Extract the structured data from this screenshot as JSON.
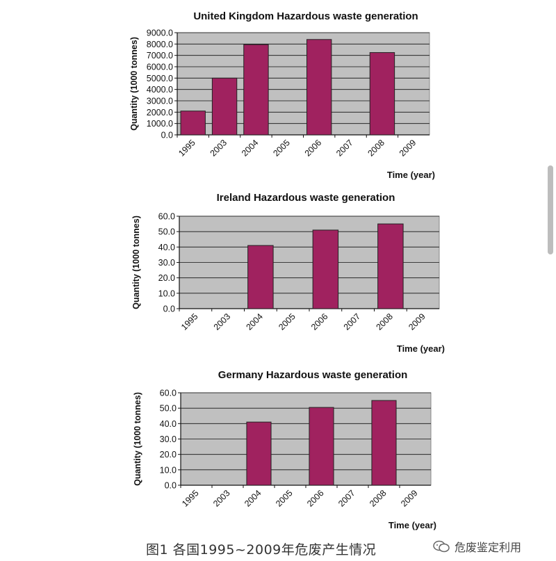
{
  "chart_data": [
    {
      "type": "bar",
      "title": "United Kingdom Hazardous waste generation",
      "xlabel": "Time (year)",
      "ylabel": "Quantity (1000 tonnes)",
      "categories": [
        "1995",
        "2003",
        "2004",
        "2005",
        "2006",
        "2007",
        "2008",
        "2009"
      ],
      "values": [
        2100,
        5000,
        7950,
        null,
        8400,
        null,
        7250,
        null
      ],
      "ylim": [
        0,
        9000
      ],
      "yticks": [
        "0.0",
        "1000.0",
        "2000.0",
        "3000.0",
        "4000.0",
        "5000.0",
        "6000.0",
        "7000.0",
        "8000.0",
        "9000.0"
      ],
      "grid": true,
      "bar_color": "#a0225f",
      "plot_bg": "#c0c0c0"
    },
    {
      "type": "bar",
      "title": "Ireland Hazardous waste generation",
      "xlabel": "Time (year)",
      "ylabel": "Quantity (1000 tonnes)",
      "categories": [
        "1995",
        "2003",
        "2004",
        "2005",
        "2006",
        "2007",
        "2008",
        "2009"
      ],
      "values": [
        null,
        null,
        41,
        null,
        51,
        null,
        55,
        null
      ],
      "ylim": [
        0,
        60
      ],
      "yticks": [
        "0.0",
        "10.0",
        "20.0",
        "30.0",
        "40.0",
        "50.0",
        "60.0"
      ],
      "grid": true,
      "bar_color": "#a0225f",
      "plot_bg": "#c0c0c0"
    },
    {
      "type": "bar",
      "title": "Germany Hazardous waste generation",
      "xlabel": "Time (year)",
      "ylabel": "Quantity (1000 tonnes)",
      "categories": [
        "1995",
        "2003",
        "2004",
        "2005",
        "2006",
        "2007",
        "2008",
        "2009"
      ],
      "values": [
        null,
        null,
        41,
        null,
        50.5,
        null,
        55,
        null
      ],
      "ylim": [
        0,
        60
      ],
      "yticks": [
        "0.0",
        "10.0",
        "20.0",
        "30.0",
        "40.0",
        "50.0",
        "60.0"
      ],
      "grid": true,
      "bar_color": "#a0225f",
      "plot_bg": "#c0c0c0"
    }
  ],
  "caption": "图1  各国1995~2009年危废产生情况",
  "watermark": "危废鉴定利用"
}
